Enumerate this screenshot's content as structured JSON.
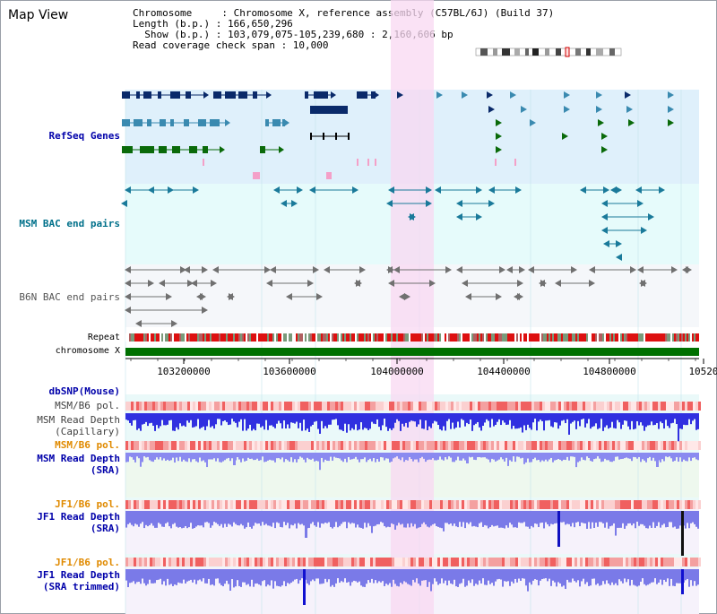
{
  "title": "Map View",
  "info": {
    "chromosome": "Chromosome     : Chromosome X, reference assembly (C57BL/6J) (Build 37)",
    "length": "Length (b.p.) : 166,650,296",
    "show": "  Show (b.p.) : 103,079,075-105,239,680 : 2,160,606 bp",
    "coverage": "Read coverage check span : 10,000"
  },
  "tracks": {
    "refseq": "RefSeq Genes",
    "msm_bac": "MSM BAC end pairs",
    "b6n_bac": "B6N BAC end pairs",
    "repeat": "Repeat",
    "chrom": "chromosome X",
    "dbsnp": "dbSNP(Mouse)",
    "msm_pol1": "MSM/B6 pol.",
    "msm_depth_cap_1": "MSM Read Depth",
    "msm_depth_cap_2": "(Capillary)",
    "msm_pol2": "MSM/B6 pol.",
    "msm_depth_sra_1": "MSM Read Depth",
    "msm_depth_sra_2": "(SRA)",
    "jf1_pol1": "JF1/B6 pol.",
    "jf1_depth_1": "JF1 Read Depth",
    "jf1_depth_2": "(SRA)",
    "jf1_pol2": "JF1/B6 pol.",
    "jf1_trim_1": "JF1 Read Depth",
    "jf1_trim_2": "(SRA trimmed)"
  },
  "axis": {
    "ticks": [
      "103200000",
      "103600000",
      "104000000",
      "104400000",
      "104800000",
      "10520"
    ]
  },
  "colors": {
    "refseq_bg": "#dff0fb",
    "msm_bg": "#e6fbfb",
    "b6n_bg": "#f5f7fa",
    "highlight": "#f8d8f2",
    "chrom_bar": "#007000",
    "label_blue": "#0000aa",
    "label_teal": "#00708a",
    "label_orange": "#e08a00",
    "label_gray": "#404040"
  }
}
